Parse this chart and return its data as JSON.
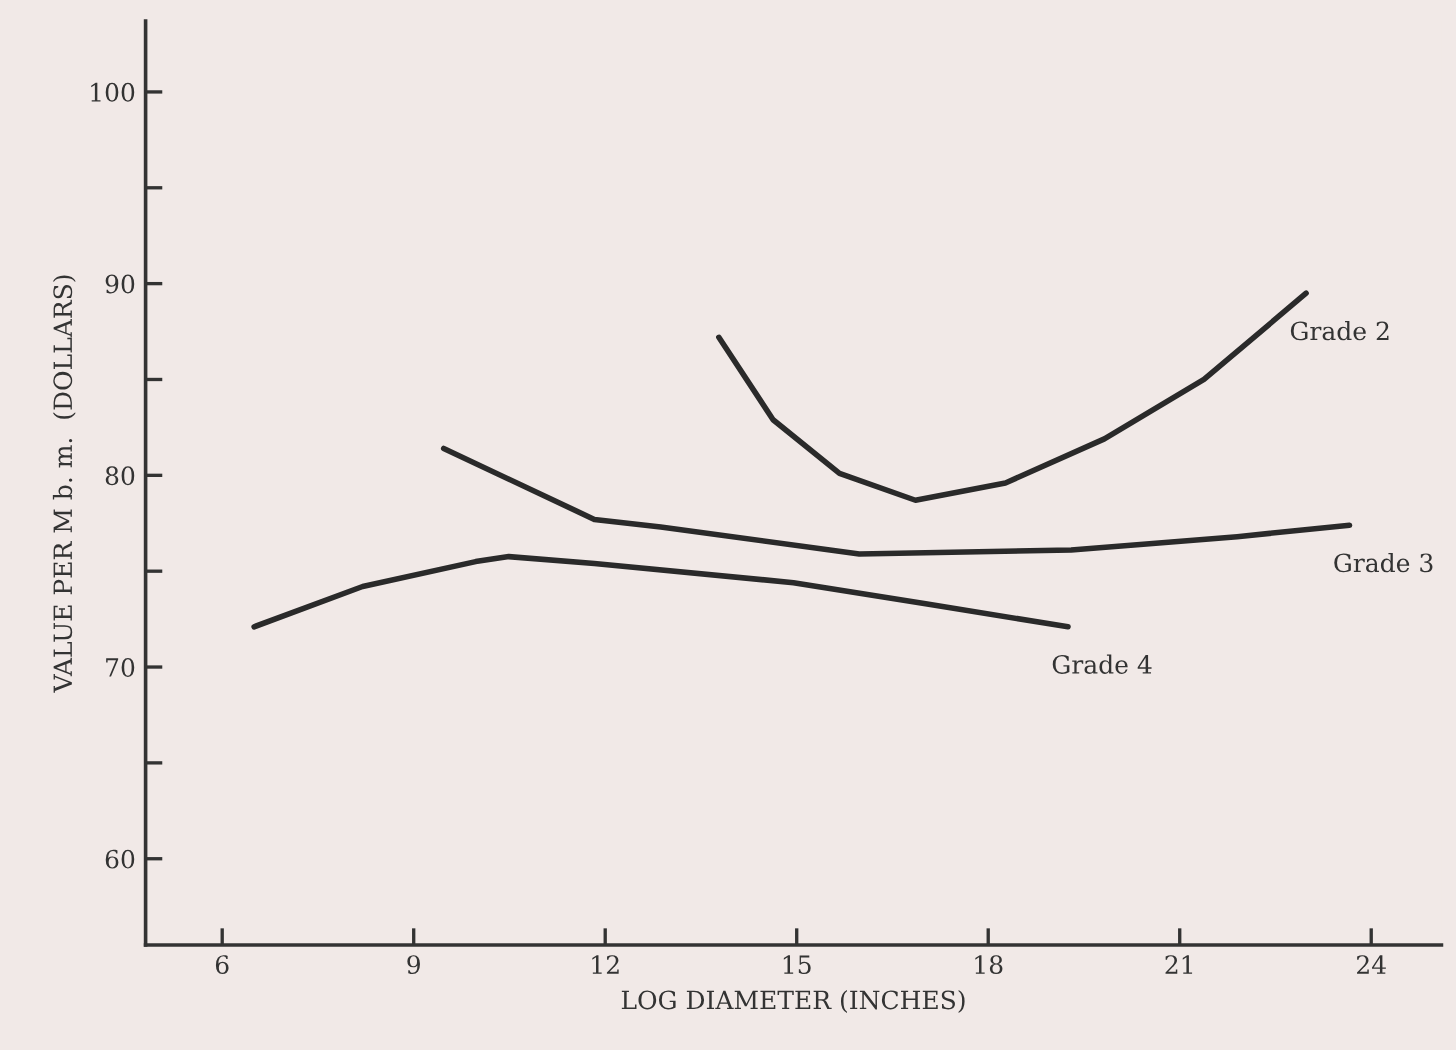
{
  "chart_data": {
    "type": "line",
    "xlabel": "LOG DIAMETER (INCHES)",
    "ylabel": "VALUE PER M b. m.  (DOLLARS)",
    "xlim": [
      4.8,
      25.1
    ],
    "ylim": [
      55.5,
      103.7
    ],
    "xticks": [
      6,
      9,
      12,
      15,
      18,
      21,
      24
    ],
    "yticks": [
      60,
      {
        "value": 65,
        "label": null
      },
      70,
      {
        "value": 75,
        "label": null
      },
      80,
      {
        "value": 85,
        "label": null
      },
      90,
      {
        "value": 95,
        "label": null
      },
      100
    ],
    "grid": false,
    "legend": false,
    "line_style": "solid",
    "marker": "none",
    "series": [
      {
        "name": "Grade 2",
        "color": "#2a2a2a",
        "x": [
          13.78,
          14.63,
          15.67,
          16.86,
          18.27,
          19.82,
          21.38,
          22.98
        ],
        "values": [
          87.2,
          82.9,
          80.1,
          78.7,
          79.6,
          81.9,
          85.0,
          89.5
        ]
      },
      {
        "name": "Grade 3",
        "color": "#2a2a2a",
        "x": [
          9.47,
          11.83,
          12.87,
          15.98,
          19.3,
          21.9,
          23.66
        ],
        "values": [
          81.4,
          77.7,
          77.3,
          75.9,
          76.1,
          76.8,
          77.4
        ]
      },
      {
        "name": "Grade 4",
        "color": "#2a2a2a",
        "x": [
          6.5,
          8.2,
          9.97,
          10.49,
          11.83,
          14.95,
          17.02,
          19.25
        ],
        "values": [
          72.1,
          74.2,
          75.5,
          75.76,
          75.4,
          74.4,
          73.3,
          72.1
        ]
      }
    ]
  }
}
